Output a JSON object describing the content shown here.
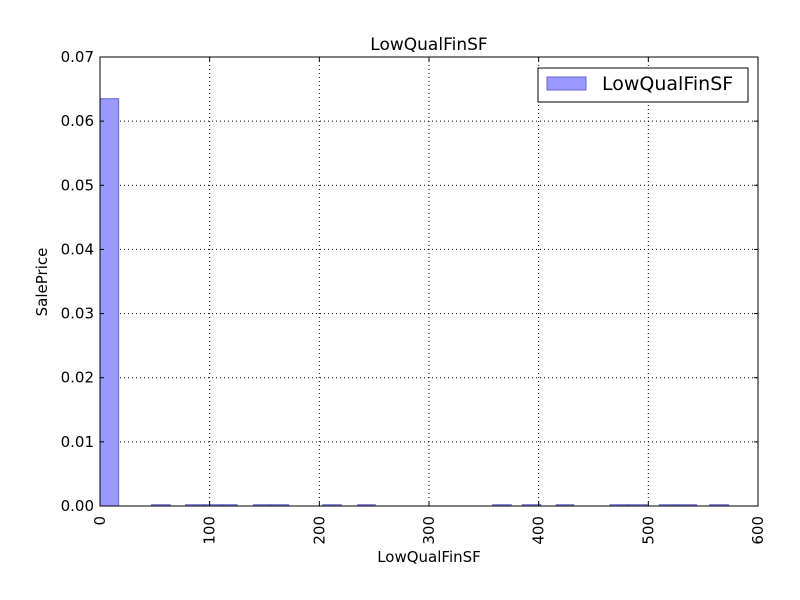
{
  "chart_data": {
    "type": "bar",
    "title": "LowQualFinSF",
    "xlabel": "LowQualFinSF",
    "ylabel": "SalePrice",
    "xlim": [
      0,
      600
    ],
    "ylim": [
      0,
      0.07
    ],
    "xticks": [
      "0",
      "100",
      "200",
      "300",
      "400",
      "500",
      "600"
    ],
    "yticks": [
      "0.00",
      "0.01",
      "0.02",
      "0.03",
      "0.04",
      "0.05",
      "0.06",
      "0.07"
    ],
    "grid": true,
    "legend": {
      "position": "top-right"
    },
    "series": [
      {
        "name": "LowQualFinSF",
        "color": "#9999ff",
        "bins": [
          {
            "x0": 0,
            "x1": 17,
            "value": 0.0635
          },
          {
            "x0": 47,
            "x1": 64,
            "value": 0.0002
          },
          {
            "x0": 78,
            "x1": 95,
            "value": 0.0002
          },
          {
            "x0": 95,
            "x1": 112,
            "value": 0.0002
          },
          {
            "x0": 112,
            "x1": 125,
            "value": 0.0002
          },
          {
            "x0": 140,
            "x1": 156,
            "value": 0.0002
          },
          {
            "x0": 156,
            "x1": 172,
            "value": 0.0002
          },
          {
            "x0": 203,
            "x1": 220,
            "value": 0.0002
          },
          {
            "x0": 235,
            "x1": 251,
            "value": 0.0002
          },
          {
            "x0": 358,
            "x1": 375,
            "value": 0.0002
          },
          {
            "x0": 385,
            "x1": 402,
            "value": 0.0002
          },
          {
            "x0": 416,
            "x1": 432,
            "value": 0.0002
          },
          {
            "x0": 465,
            "x1": 482,
            "value": 0.0002
          },
          {
            "x0": 482,
            "x1": 499,
            "value": 0.0002
          },
          {
            "x0": 510,
            "x1": 527,
            "value": 0.0002
          },
          {
            "x0": 527,
            "x1": 544,
            "value": 0.0002
          },
          {
            "x0": 556,
            "x1": 573,
            "value": 0.0002
          }
        ]
      }
    ]
  }
}
